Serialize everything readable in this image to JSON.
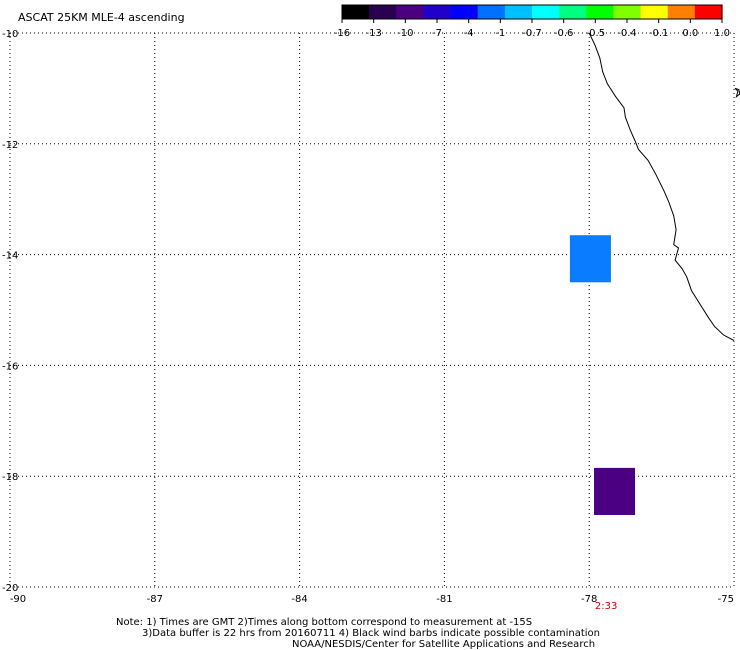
{
  "title": "ASCAT 25KM MLE-4 ascending",
  "colorbar": {
    "colors": [
      "#000000",
      "#2a0050",
      "#4b0082",
      "#2200cc",
      "#0000ff",
      "#0070ff",
      "#00c0ff",
      "#00ffff",
      "#00ff80",
      "#00ff00",
      "#80ff00",
      "#ffff00",
      "#ff8000",
      "#ff0000"
    ],
    "labels": [
      "-16",
      "-13",
      "-10",
      "-7",
      "-4",
      "-1",
      "-0.7",
      "-0.6",
      "-0.5",
      "-0.4",
      "-0.1",
      "0.0",
      "1.0"
    ]
  },
  "map": {
    "lon_range": [
      -90,
      -75
    ],
    "lat_range": [
      -20,
      -10
    ],
    "x_ticks": [
      -90,
      -87,
      -84,
      -81,
      -78,
      -75
    ],
    "x_tick_labels": [
      "-90",
      "-87",
      "-84",
      "-81",
      "-78",
      "-75"
    ],
    "y_ticks": [
      -10,
      -12,
      -14,
      -16,
      -18,
      -20
    ],
    "y_tick_labels": [
      "-10",
      "-12",
      "-14",
      "-16",
      "-18",
      "-20"
    ],
    "grid": "dotted",
    "time_label": {
      "lon": -77.65,
      "text": "2:33",
      "color": "#cc0000"
    },
    "cells": [
      {
        "lon1": -78.4,
        "lon2": -77.55,
        "lat1": -13.65,
        "lat2": -14.5,
        "color": "#0a7cff"
      },
      {
        "lon1": -77.9,
        "lon2": -77.05,
        "lat1": -17.85,
        "lat2": -18.7,
        "color": "#4b0082"
      }
    ],
    "coastline": [
      [
        -78.0,
        -10.0
      ],
      [
        -77.88,
        -10.22
      ],
      [
        -77.78,
        -10.45
      ],
      [
        -77.72,
        -10.7
      ],
      [
        -77.62,
        -10.92
      ],
      [
        -77.45,
        -11.15
      ],
      [
        -77.28,
        -11.35
      ],
      [
        -77.25,
        -11.52
      ],
      [
        -77.15,
        -11.75
      ],
      [
        -77.05,
        -11.95
      ],
      [
        -76.98,
        -12.1
      ],
      [
        -76.78,
        -12.3
      ],
      [
        -76.62,
        -12.55
      ],
      [
        -76.45,
        -12.85
      ],
      [
        -76.35,
        -13.05
      ],
      [
        -76.25,
        -13.3
      ],
      [
        -76.2,
        -13.55
      ],
      [
        -76.25,
        -13.82
      ],
      [
        -76.15,
        -13.88
      ],
      [
        -76.22,
        -14.1
      ],
      [
        -76.08,
        -14.25
      ],
      [
        -75.98,
        -14.4
      ],
      [
        -75.88,
        -14.65
      ],
      [
        -75.7,
        -14.9
      ],
      [
        -75.52,
        -15.15
      ],
      [
        -75.4,
        -15.3
      ],
      [
        -75.22,
        -15.45
      ],
      [
        -75.0,
        -15.55
      ]
    ],
    "island": [
      [
        -74.98,
        -11.0
      ],
      [
        -74.9,
        -11.02
      ],
      [
        -74.88,
        -11.1
      ],
      [
        -74.95,
        -11.15
      ],
      [
        -74.92,
        -11.05
      ],
      [
        -74.98,
        -11.0
      ]
    ]
  },
  "notes": {
    "line1": "Note: 1) Times are GMT 2)Times along bottom correspond to measurement at -15S",
    "line2": "3)Data buffer is 22 hrs from 20160711 4) Black wind barbs indicate possible contamination",
    "line3": "NOAA/NESDIS/Center for Satellite Applications and Research"
  }
}
